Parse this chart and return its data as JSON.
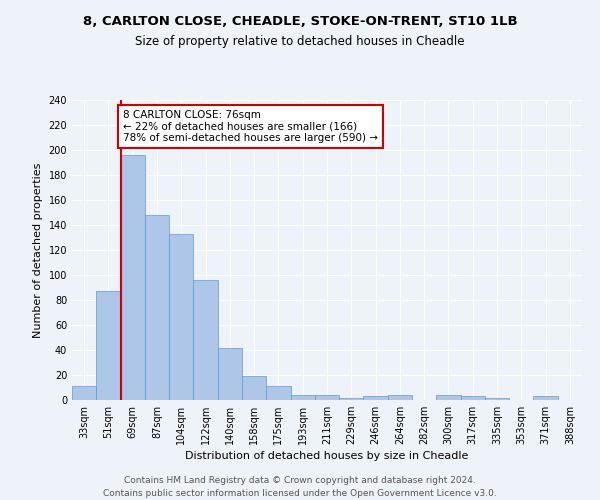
{
  "title_line1": "8, CARLTON CLOSE, CHEADLE, STOKE-ON-TRENT, ST10 1LB",
  "title_line2": "Size of property relative to detached houses in Cheadle",
  "xlabel": "Distribution of detached houses by size in Cheadle",
  "ylabel": "Number of detached properties",
  "categories": [
    "33sqm",
    "51sqm",
    "69sqm",
    "87sqm",
    "104sqm",
    "122sqm",
    "140sqm",
    "158sqm",
    "175sqm",
    "193sqm",
    "211sqm",
    "229sqm",
    "246sqm",
    "264sqm",
    "282sqm",
    "300sqm",
    "317sqm",
    "335sqm",
    "353sqm",
    "371sqm",
    "388sqm"
  ],
  "values": [
    11,
    87,
    196,
    148,
    133,
    96,
    42,
    19,
    11,
    4,
    4,
    2,
    3,
    4,
    0,
    4,
    3,
    2,
    0,
    3,
    0
  ],
  "bar_color": "#aec6e8",
  "bar_edge_color": "#5b9bd5",
  "highlight_bar_index": 2,
  "highlight_line_color": "#cc0000",
  "highlight_bar_edge_color": "#cc0000",
  "annotation_text": "8 CARLTON CLOSE: 76sqm\n← 22% of detached houses are smaller (166)\n78% of semi-detached houses are larger (590) →",
  "annotation_box_color": "#ffffff",
  "annotation_box_edge_color": "#cc0000",
  "ylim": [
    0,
    240
  ],
  "yticks": [
    0,
    20,
    40,
    60,
    80,
    100,
    120,
    140,
    160,
    180,
    200,
    220,
    240
  ],
  "footer_line1": "Contains HM Land Registry data © Crown copyright and database right 2024.",
  "footer_line2": "Contains public sector information licensed under the Open Government Licence v3.0.",
  "bg_color": "#eef2f9",
  "grid_color": "#ffffff",
  "title_fontsize": 9.5,
  "subtitle_fontsize": 8.5,
  "axis_label_fontsize": 8,
  "tick_fontsize": 7,
  "annotation_fontsize": 7.5,
  "footer_fontsize": 6.5
}
